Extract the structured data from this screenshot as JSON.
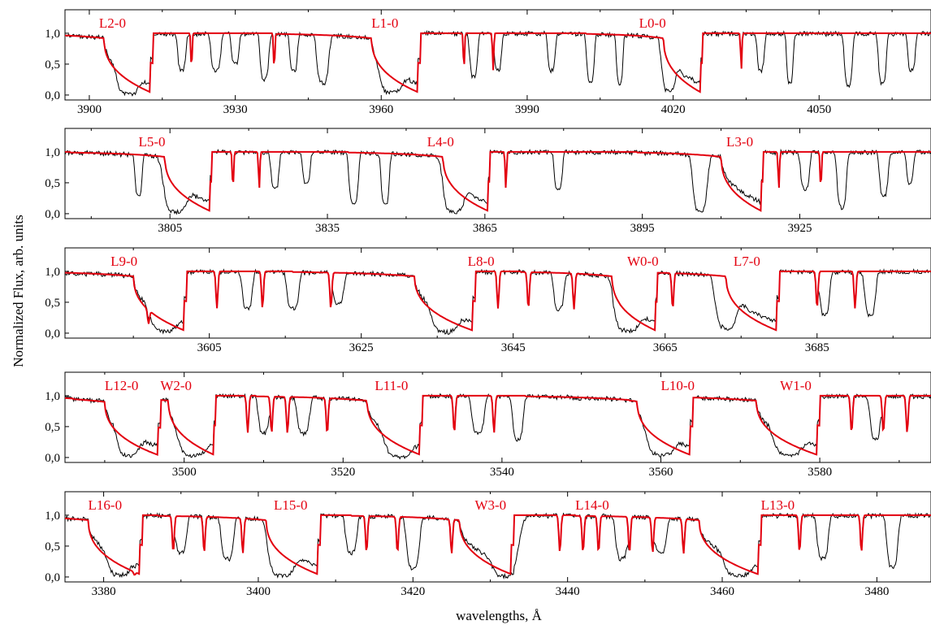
{
  "chart_data": {
    "type": "line",
    "ylabel": "Normalized Flux, arb. units",
    "xlabel": "wavelengths, Å",
    "series_styles": {
      "observed": {
        "color": "#000000"
      },
      "model": {
        "color": "#e3000f"
      }
    },
    "panels": [
      {
        "id": "p1",
        "xlim": [
          3895,
          4073
        ],
        "ylim": [
          -0.08,
          1.38
        ],
        "xticks": [
          3900,
          3930,
          3960,
          3990,
          4020,
          4050
        ],
        "xtick_labels": [
          "3900",
          "3930",
          "3960",
          "3990",
          "4020",
          "4050"
        ],
        "yticks": [
          0.0,
          0.5,
          1.0
        ],
        "ytick_labels": [
          "0,0",
          "0,5",
          "1,0"
        ],
        "band_labels": [
          {
            "text": "L2-0",
            "x": 3902
          },
          {
            "text": "L1-0",
            "x": 3958
          },
          {
            "text": "L0-0",
            "x": 4013
          }
        ],
        "model_bands": [
          {
            "head": 3913,
            "width": 10
          },
          {
            "head": 3968,
            "width": 10
          },
          {
            "head": 4026,
            "width": 8
          }
        ],
        "model_lines": [
          3921,
          3938,
          3977,
          3983,
          4034
        ],
        "observed_dips": [
          {
            "center": 3908,
            "width": 4,
            "depth": 0.95
          },
          {
            "center": 3919,
            "width": 1.5,
            "depth": 0.6
          },
          {
            "center": 3926,
            "width": 1.8,
            "depth": 0.6
          },
          {
            "center": 3930,
            "width": 1.4,
            "depth": 0.5
          },
          {
            "center": 3936,
            "width": 1.6,
            "depth": 0.75
          },
          {
            "center": 3942,
            "width": 1.4,
            "depth": 0.6
          },
          {
            "center": 3948,
            "width": 2.2,
            "depth": 0.8
          },
          {
            "center": 3962,
            "width": 4,
            "depth": 0.9
          },
          {
            "center": 3979,
            "width": 1.5,
            "depth": 0.7
          },
          {
            "center": 3984,
            "width": 1.3,
            "depth": 0.6
          },
          {
            "center": 3995,
            "width": 1.4,
            "depth": 0.6
          },
          {
            "center": 4003,
            "width": 1.4,
            "depth": 0.8
          },
          {
            "center": 4009,
            "width": 1.2,
            "depth": 0.8
          },
          {
            "center": 4019,
            "width": 2.5,
            "depth": 0.9
          },
          {
            "center": 4038,
            "width": 1.3,
            "depth": 0.6
          },
          {
            "center": 4044,
            "width": 1.2,
            "depth": 0.8
          },
          {
            "center": 4056,
            "width": 1.5,
            "depth": 0.85
          },
          {
            "center": 4063,
            "width": 1.5,
            "depth": 0.8
          },
          {
            "center": 4069,
            "width": 1.4,
            "depth": 0.6
          }
        ]
      },
      {
        "id": "p2",
        "xlim": [
          3785,
          3950
        ],
        "ylim": [
          -0.08,
          1.38
        ],
        "xticks": [
          3805,
          3835,
          3865,
          3895,
          3925
        ],
        "xtick_labels": [
          "3805",
          "3835",
          "3865",
          "3895",
          "3925"
        ],
        "yticks": [
          0.0,
          0.5,
          1.0
        ],
        "ytick_labels": [
          "0,0",
          "0,5",
          "1,0"
        ],
        "band_labels": [
          {
            "text": "L5-0",
            "x": 3799
          },
          {
            "text": "L4-0",
            "x": 3854
          },
          {
            "text": "L3-0",
            "x": 3911
          }
        ],
        "model_bands": [
          {
            "head": 3813,
            "width": 9
          },
          {
            "head": 3866,
            "width": 9
          },
          {
            "head": 3918,
            "width": 8
          }
        ],
        "model_lines": [
          3817,
          3822,
          3869,
          3921,
          3929
        ],
        "observed_dips": [
          {
            "center": 3806,
            "width": 4,
            "depth": 0.95
          },
          {
            "center": 3799,
            "width": 1.2,
            "depth": 0.7
          },
          {
            "center": 3825,
            "width": 1.4,
            "depth": 0.6
          },
          {
            "center": 3831,
            "width": 1.3,
            "depth": 0.5
          },
          {
            "center": 3840,
            "width": 1.6,
            "depth": 0.85
          },
          {
            "center": 3846,
            "width": 1.4,
            "depth": 0.85
          },
          {
            "center": 3859,
            "width": 3.5,
            "depth": 0.95
          },
          {
            "center": 3879,
            "width": 1.4,
            "depth": 0.6
          },
          {
            "center": 3906,
            "width": 2.5,
            "depth": 0.95
          },
          {
            "center": 3926,
            "width": 1.5,
            "depth": 0.6
          },
          {
            "center": 3933,
            "width": 1.6,
            "depth": 0.9
          },
          {
            "center": 3941,
            "width": 1.5,
            "depth": 0.7
          },
          {
            "center": 3946,
            "width": 1.2,
            "depth": 0.5
          }
        ]
      },
      {
        "id": "p3",
        "xlim": [
          3586,
          3700
        ],
        "ylim": [
          -0.08,
          1.38
        ],
        "xticks": [
          3605,
          3625,
          3645,
          3665,
          3685
        ],
        "xtick_labels": [
          "3605",
          "3625",
          "3645",
          "3665",
          "3685"
        ],
        "yticks": [
          0.0,
          0.5,
          1.0
        ],
        "ytick_labels": [
          "0,0",
          "0,5",
          "1,0"
        ],
        "band_labels": [
          {
            "text": "L9-0",
            "x": 3592
          },
          {
            "text": "L8-0",
            "x": 3639
          },
          {
            "text": "W0-0",
            "x": 3660
          },
          {
            "text": "L7-0",
            "x": 3674
          }
        ],
        "model_bands": [
          {
            "head": 3602,
            "width": 7
          },
          {
            "head": 3640,
            "width": 8
          },
          {
            "head": 3664,
            "width": 6
          },
          {
            "head": 3680,
            "width": 7
          }
        ],
        "model_lines": [
          3597,
          3606,
          3612,
          3621,
          3643,
          3647,
          3653,
          3666,
          3685,
          3690
        ],
        "observed_dips": [
          {
            "center": 3599,
            "width": 3,
            "depth": 0.9
          },
          {
            "center": 3610,
            "width": 1.2,
            "depth": 0.6
          },
          {
            "center": 3616,
            "width": 1.4,
            "depth": 0.6
          },
          {
            "center": 3622,
            "width": 1.3,
            "depth": 0.5
          },
          {
            "center": 3636,
            "width": 3,
            "depth": 0.95
          },
          {
            "center": 3651,
            "width": 1.2,
            "depth": 0.6
          },
          {
            "center": 3660,
            "width": 3,
            "depth": 0.9
          },
          {
            "center": 3673,
            "width": 2.5,
            "depth": 0.9
          },
          {
            "center": 3686,
            "width": 1.2,
            "depth": 0.7
          },
          {
            "center": 3692,
            "width": 1.3,
            "depth": 0.7
          }
        ]
      },
      {
        "id": "p4",
        "xlim": [
          3485,
          3594
        ],
        "ylim": [
          -0.08,
          1.38
        ],
        "xticks": [
          3500,
          3520,
          3540,
          3560,
          3580
        ],
        "xtick_labels": [
          "3500",
          "3520",
          "3540",
          "3560",
          "3580"
        ],
        "yticks": [
          0.0,
          0.5,
          1.0
        ],
        "ytick_labels": [
          "0,0",
          "0,5",
          "1,0"
        ],
        "band_labels": [
          {
            "text": "L12-0",
            "x": 3490
          },
          {
            "text": "W2-0",
            "x": 3497
          },
          {
            "text": "L11-0",
            "x": 3524
          },
          {
            "text": "W1-0",
            "x": 3575
          },
          {
            "text": "L10-0",
            "x": 3560
          }
        ],
        "model_bands": [
          {
            "head": 3497,
            "width": 7
          },
          {
            "head": 3504,
            "width": 6
          },
          {
            "head": 3530,
            "width": 7
          },
          {
            "head": 3564,
            "width": 7
          },
          {
            "head": 3580,
            "width": 8
          }
        ],
        "model_lines": [
          3508,
          3511,
          3513,
          3518,
          3534,
          3539,
          3584,
          3588,
          3591
        ],
        "observed_dips": [
          {
            "center": 3493,
            "width": 2.5,
            "depth": 0.9
          },
          {
            "center": 3501,
            "width": 3,
            "depth": 0.9
          },
          {
            "center": 3510,
            "width": 1.2,
            "depth": 0.6
          },
          {
            "center": 3515,
            "width": 1.4,
            "depth": 0.6
          },
          {
            "center": 3527,
            "width": 3,
            "depth": 0.95
          },
          {
            "center": 3537,
            "width": 1.4,
            "depth": 0.6
          },
          {
            "center": 3542,
            "width": 1.2,
            "depth": 0.7
          },
          {
            "center": 3560,
            "width": 3,
            "depth": 0.9
          },
          {
            "center": 3576,
            "width": 3,
            "depth": 0.9
          },
          {
            "center": 3587,
            "width": 1.2,
            "depth": 0.7
          }
        ]
      },
      {
        "id": "p5",
        "xlim": [
          3375,
          3487
        ],
        "ylim": [
          -0.08,
          1.38
        ],
        "xticks": [
          3380,
          3400,
          3420,
          3440,
          3460,
          3480
        ],
        "xtick_labels": [
          "3380",
          "3400",
          "3420",
          "3440",
          "3460",
          "3480"
        ],
        "yticks": [
          0.0,
          0.5,
          1.0
        ],
        "ytick_labels": [
          "0,0",
          "0,5",
          "1,0"
        ],
        "band_labels": [
          {
            "text": "L16-0",
            "x": 3378
          },
          {
            "text": "L15-0",
            "x": 3402
          },
          {
            "text": "W3-0",
            "x": 3428
          },
          {
            "text": "L14-0",
            "x": 3441
          },
          {
            "text": "L13-0",
            "x": 3465
          }
        ],
        "model_bands": [
          {
            "head": 3385,
            "width": 7
          },
          {
            "head": 3408,
            "width": 7
          },
          {
            "head": 3433,
            "width": 7
          },
          {
            "head": 3465,
            "width": 8
          }
        ],
        "model_lines": [
          3384,
          3389,
          3393,
          3398,
          3414,
          3418,
          3425,
          3439,
          3442,
          3444,
          3448,
          3451,
          3455,
          3470,
          3478
        ],
        "observed_dips": [
          {
            "center": 3382,
            "width": 2.5,
            "depth": 0.9
          },
          {
            "center": 3390,
            "width": 1.3,
            "depth": 0.6
          },
          {
            "center": 3396,
            "width": 1.4,
            "depth": 0.7
          },
          {
            "center": 3403,
            "width": 3,
            "depth": 0.95
          },
          {
            "center": 3412,
            "width": 1.3,
            "depth": 0.6
          },
          {
            "center": 3420,
            "width": 1.5,
            "depth": 0.85
          },
          {
            "center": 3432,
            "width": 3,
            "depth": 0.95
          },
          {
            "center": 3447,
            "width": 1.4,
            "depth": 0.7
          },
          {
            "center": 3452,
            "width": 1.4,
            "depth": 0.6
          },
          {
            "center": 3462,
            "width": 3,
            "depth": 0.9
          },
          {
            "center": 3473,
            "width": 1.3,
            "depth": 0.7
          },
          {
            "center": 3482,
            "width": 1.3,
            "depth": 0.85
          }
        ]
      }
    ]
  }
}
